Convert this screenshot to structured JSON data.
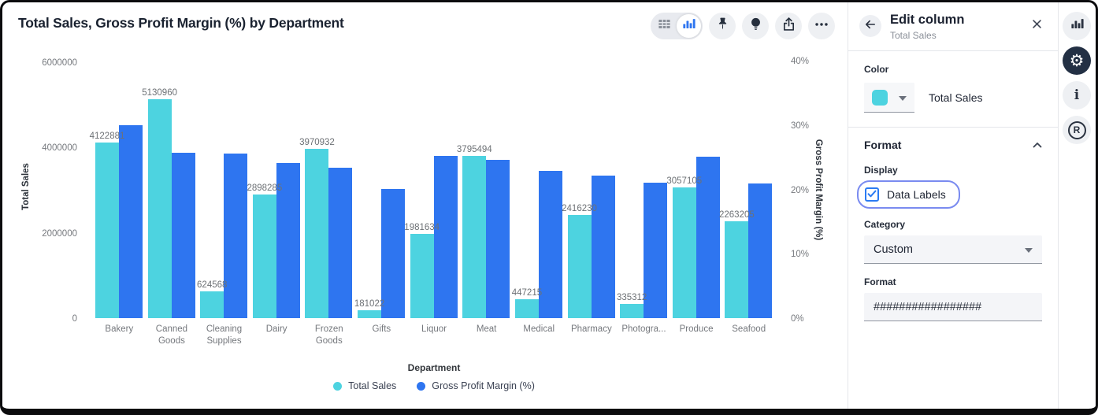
{
  "chart": {
    "title": "Total Sales, Gross Profit Margin (%) by Department",
    "toolbar": {
      "view_toggle": {
        "options": [
          "table-view",
          "chart-view"
        ],
        "selected": "chart-view"
      },
      "buttons": [
        "pin",
        "lightbulb",
        "share",
        "more-options"
      ]
    }
  },
  "chart_data": {
    "type": "bar",
    "title": "Total Sales, Gross Profit Margin (%) by Department",
    "xlabel": "Department",
    "ylabel_left": "Total Sales",
    "ylabel_right": "Gross Profit Margin (%)",
    "grid": false,
    "legend_position": "bottom",
    "legend": [
      {
        "label": "Total Sales",
        "color": "#4DD3E0"
      },
      {
        "label": "Gross Profit Margin (%)",
        "color": "#2E75F0"
      }
    ],
    "categories": [
      "Bakery",
      "Canned Goods",
      "Cleaning Supplies",
      "Dairy",
      "Frozen Goods",
      "Gifts",
      "Liquor",
      "Meat",
      "Medical",
      "Pharmacy",
      "Photogra...",
      "Produce",
      "Seafood"
    ],
    "series": [
      {
        "name": "Total Sales",
        "axis": "left",
        "color": "#4DD3E0",
        "data_labels": true,
        "values": [
          4122881,
          5130960,
          624568,
          2898285,
          3970932,
          181022,
          1981634,
          3795494,
          447215,
          2416230,
          335312,
          3057105,
          2263205
        ]
      },
      {
        "name": "Gross Profit Margin (%)",
        "axis": "right",
        "color": "#2E75F0",
        "data_labels": false,
        "values": [
          30,
          25.7,
          25.6,
          24.1,
          23.4,
          20.1,
          25.2,
          24.6,
          22.9,
          22.2,
          21.0,
          25.1,
          20.9
        ]
      }
    ],
    "left_axis": {
      "max": 6000000,
      "ticks": [
        {
          "value": 0,
          "label": "0"
        },
        {
          "value": 2000000,
          "label": "2000000"
        },
        {
          "value": 4000000,
          "label": "4000000"
        },
        {
          "value": 6000000,
          "label": "6000000"
        }
      ]
    },
    "right_axis": {
      "max": 40,
      "ticks": [
        {
          "value": 0,
          "label": "0%"
        },
        {
          "value": 10,
          "label": "10%"
        },
        {
          "value": 20,
          "label": "20%"
        },
        {
          "value": 30,
          "label": "30%"
        },
        {
          "value": 40,
          "label": "40%"
        }
      ]
    }
  },
  "panel": {
    "title": "Edit column",
    "subtitle": "Total Sales",
    "icons": [
      "arrow-left",
      "close"
    ],
    "color_section": {
      "label": "Color",
      "swatch_color": "#4DD3E0",
      "series_name": "Total Sales"
    },
    "format_section": {
      "title": "Format",
      "collapse_icon": "chevron-up",
      "display_label": "Display",
      "data_labels_checkbox": {
        "label": "Data Labels",
        "checked": true,
        "highlight_color": "#7A8BF0"
      },
      "category_label": "Category",
      "category_value": "Custom",
      "format_label": "Format",
      "format_value": "#################"
    }
  },
  "rail": {
    "icons": [
      "bar-chart",
      "settings-gear",
      "info",
      "r-logo"
    ],
    "active": "settings-gear"
  }
}
